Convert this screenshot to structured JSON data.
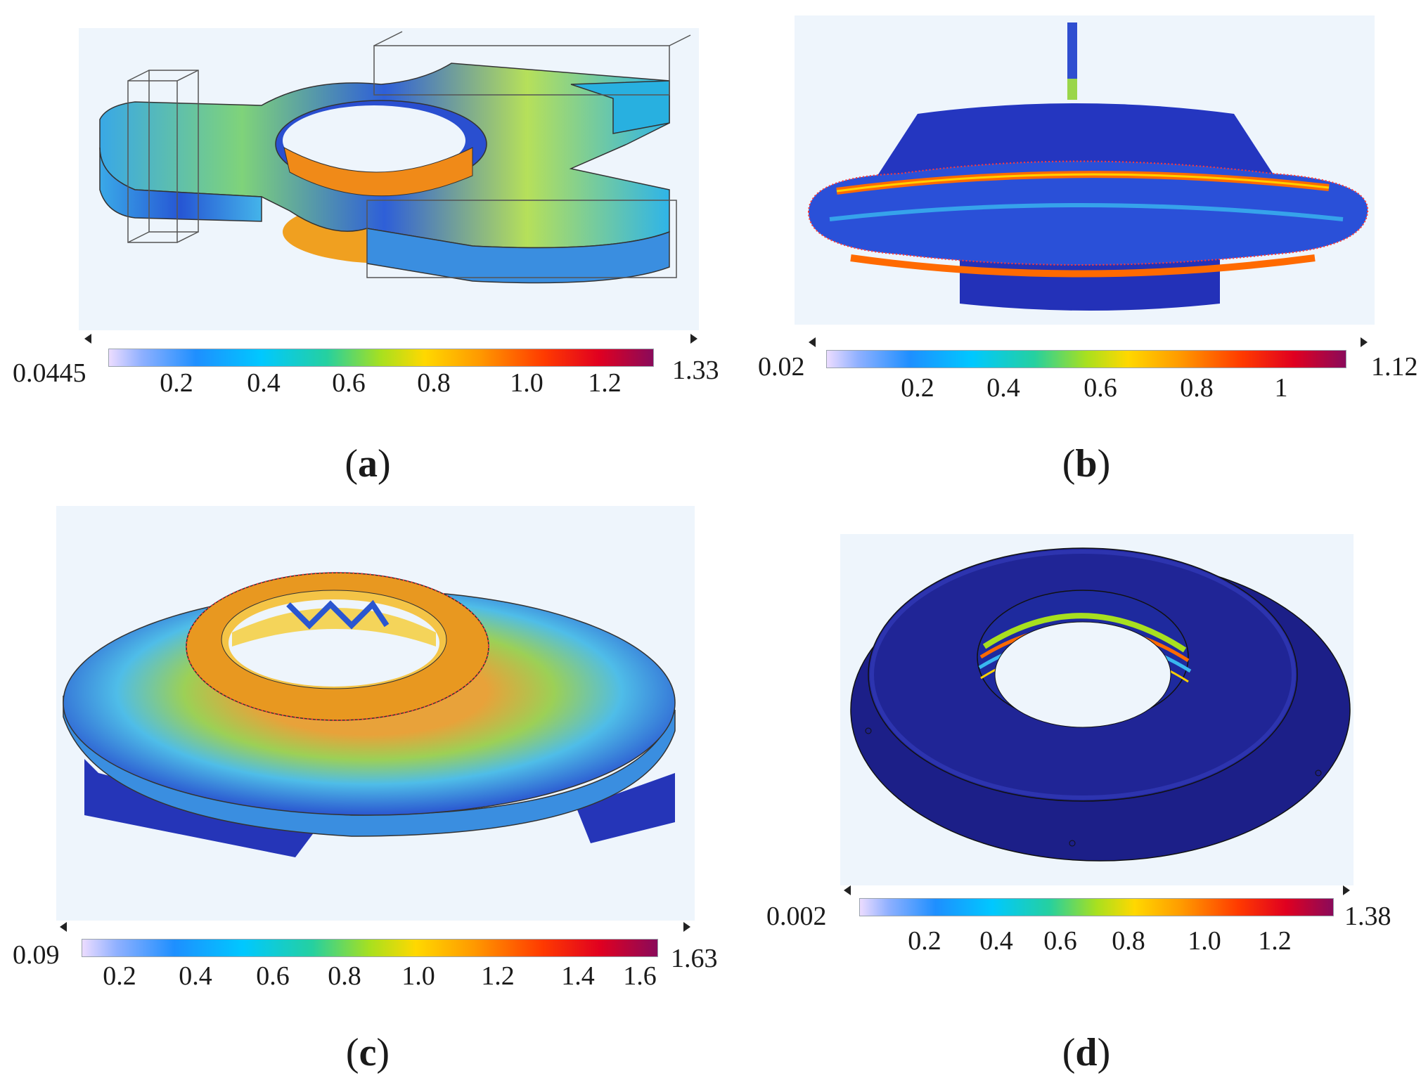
{
  "panels": [
    {
      "id": "a",
      "caption_open": "(",
      "caption_letter": "a",
      "caption_close": ")",
      "min": "0.0445",
      "max": "1.33",
      "ticks": [
        "0.2",
        "0.4",
        "0.6",
        "0.8",
        "1.0",
        "1.2"
      ]
    },
    {
      "id": "b",
      "caption_open": "(",
      "caption_letter": "b",
      "caption_close": ")",
      "min": "0.02",
      "max": "1.12",
      "ticks": [
        "0.2",
        "0.4",
        "0.6",
        "0.8",
        "1"
      ]
    },
    {
      "id": "c",
      "caption_open": "(",
      "caption_letter": "c",
      "caption_close": ")",
      "min": "0.09",
      "max": "1.63",
      "ticks": [
        "0.2",
        "0.4",
        "0.6",
        "0.8",
        "1.0",
        "1.2",
        "1.4",
        "1.6"
      ]
    },
    {
      "id": "d",
      "caption_open": "(",
      "caption_letter": "d",
      "caption_close": ")",
      "min": "0.002",
      "max": "1.38",
      "ticks": [
        "0.2",
        "0.4",
        "0.6",
        "0.8",
        "1.0",
        "1.2"
      ]
    }
  ],
  "colors": {
    "background": "#eef5fc",
    "low": "#1a2aa8",
    "mid": "#a8e01f",
    "high": "#ff3a00",
    "max": "#8a0a5a"
  }
}
